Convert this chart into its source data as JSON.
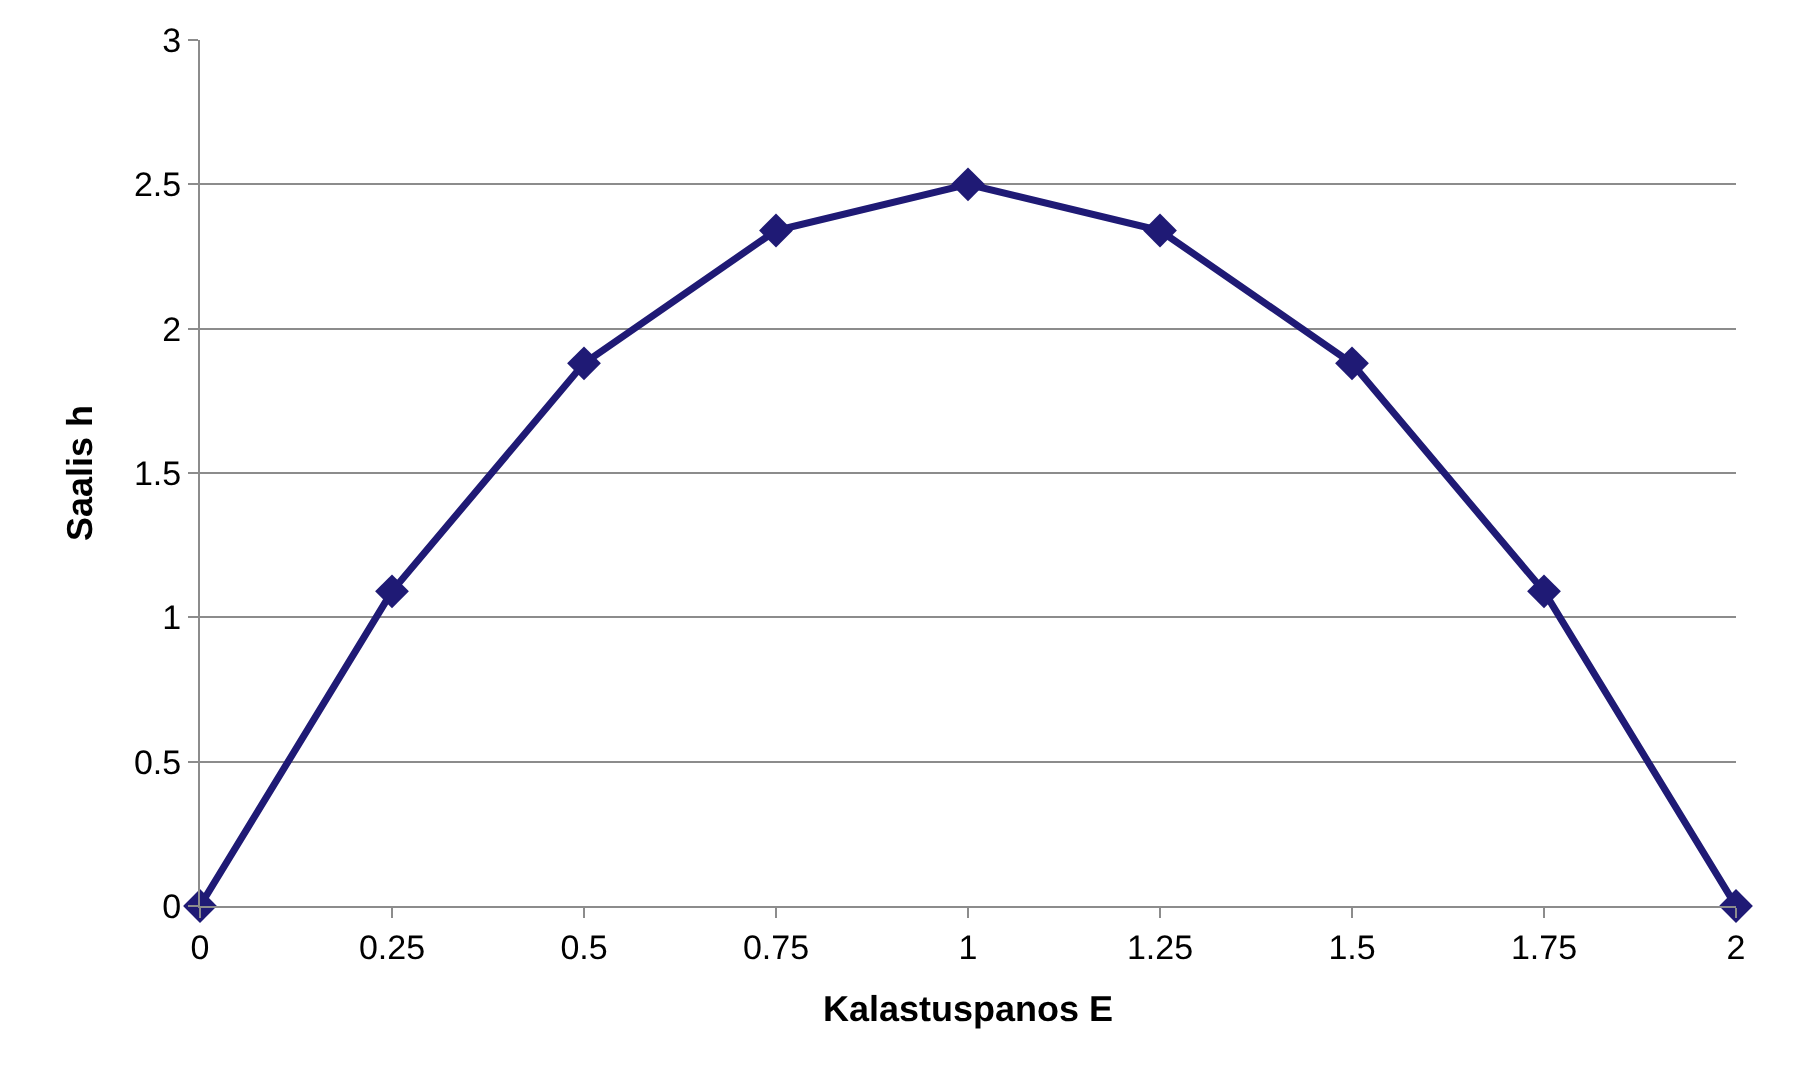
{
  "chart_data": {
    "type": "line",
    "xlabel": "Kalastuspanos E",
    "ylabel": "Saalis h",
    "x": [
      0,
      0.25,
      0.5,
      0.75,
      1,
      1.25,
      1.5,
      1.75,
      2
    ],
    "series": [
      {
        "color": "#1f1a75",
        "values": [
          0,
          1.09,
          1.88,
          2.34,
          2.5,
          2.34,
          1.88,
          1.09,
          0
        ]
      }
    ],
    "xlim": [
      0,
      2
    ],
    "xticks": [
      0,
      0.25,
      0.5,
      0.75,
      1,
      1.25,
      1.5,
      1.75,
      2
    ],
    "ylim": [
      0,
      3
    ],
    "yticks": [
      0,
      0.5,
      1,
      1.5,
      2,
      2.5,
      3
    ],
    "grid": "y",
    "marker": "diamond",
    "line_style": "solid"
  }
}
